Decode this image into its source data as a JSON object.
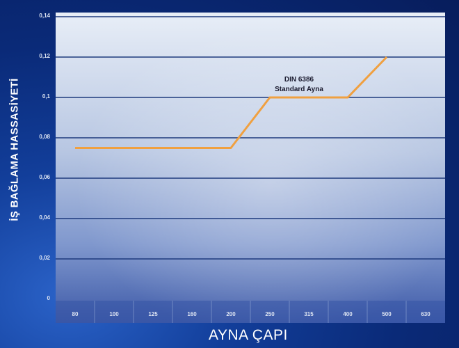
{
  "chart_data": {
    "type": "line",
    "ylabel": "İŞ BAĞLAMA HASSASİYETİ",
    "xlabel": "AYNA ÇAPI",
    "categories": [
      "80",
      "100",
      "125",
      "160",
      "200",
      "250",
      "315",
      "400",
      "500",
      "630"
    ],
    "ytick_labels": [
      "0",
      "0,02",
      "0,04",
      "0,06",
      "0,08",
      "0,1",
      "0,12",
      "0,14"
    ],
    "ylim": [
      0,
      0.14
    ],
    "grid": true,
    "series": [
      {
        "x": [
          "80",
          "200",
          "250",
          "400",
          "500"
        ],
        "values": [
          0.075,
          0.075,
          0.1,
          0.1,
          0.12
        ],
        "color": "#f0a040"
      }
    ],
    "annotations": [
      {
        "line1": "DIN 6386",
        "line2": "Standard Ayna",
        "x": "315",
        "y": 0.1
      }
    ]
  },
  "colors": {
    "plot_top": "#e6ecf6",
    "plot_bottom": "#3e5fb0",
    "gridline": "#1e3a7c",
    "series": "#f0a040"
  }
}
